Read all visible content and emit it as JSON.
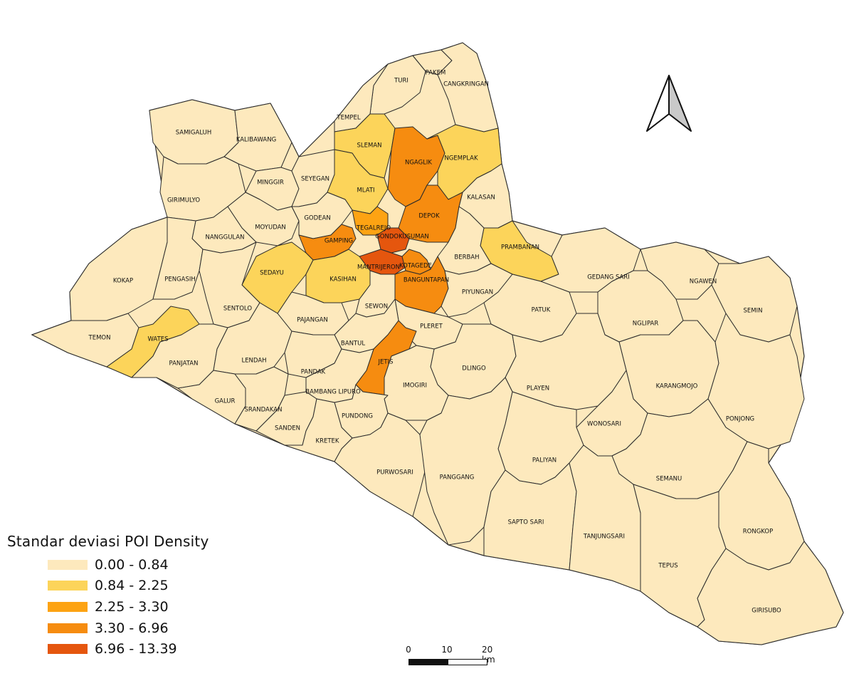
{
  "legend": {
    "title": "Standar deviasi POI Density",
    "classes": [
      {
        "label": "0.00 - 0.84",
        "color": "#fde9bd"
      },
      {
        "label": "0.84 - 2.25",
        "color": "#fcd45a"
      },
      {
        "label": "2.25 - 3.30",
        "color": "#fda313"
      },
      {
        "label": "3.30 - 6.96",
        "color": "#f68c10"
      },
      {
        "label": "6.96 - 13.39",
        "color": "#e5560e"
      }
    ]
  },
  "scalebar": {
    "labels": [
      "0",
      "10",
      "20 km"
    ]
  },
  "north_arrow": {
    "icon": "north-arrow-icon"
  },
  "districts": [
    {
      "name": "TURI",
      "cls": 0
    },
    {
      "name": "PAKEM",
      "cls": 0
    },
    {
      "name": "CANGKRINGAN",
      "cls": 0
    },
    {
      "name": "TEMPEL",
      "cls": 0
    },
    {
      "name": "SLEMAN",
      "cls": 1
    },
    {
      "name": "NGAGLIK",
      "cls": 3
    },
    {
      "name": "NGEMPLAK",
      "cls": 1
    },
    {
      "name": "SAMIGALUH",
      "cls": 0
    },
    {
      "name": "KALIBAWANG",
      "cls": 0
    },
    {
      "name": "MINGGIR",
      "cls": 0
    },
    {
      "name": "SEYEGAN",
      "cls": 0
    },
    {
      "name": "MLATI",
      "cls": 1
    },
    {
      "name": "KALASAN",
      "cls": 0
    },
    {
      "name": "DEPOK",
      "cls": 3
    },
    {
      "name": "GIRIMULYO",
      "cls": 0
    },
    {
      "name": "MOYUDAN",
      "cls": 0
    },
    {
      "name": "GODEAN",
      "cls": 0
    },
    {
      "name": "NANGGULAN",
      "cls": 0
    },
    {
      "name": "GAMPING",
      "cls": 3
    },
    {
      "name": "TEGALREJO",
      "cls": 2
    },
    {
      "name": "GONDOKUSUMAN",
      "cls": 4
    },
    {
      "name": "PRAMBANAN",
      "cls": 1
    },
    {
      "name": "SEDAYU",
      "cls": 1
    },
    {
      "name": "KOKAP",
      "cls": 0
    },
    {
      "name": "PENGASIH",
      "cls": 0
    },
    {
      "name": "KASIHAN",
      "cls": 1
    },
    {
      "name": "MANTRIJERON",
      "cls": 4
    },
    {
      "name": "KOTAGEDE",
      "cls": 3
    },
    {
      "name": "BERBAH",
      "cls": 0
    },
    {
      "name": "BANGUNTAPAN",
      "cls": 3
    },
    {
      "name": "PIYUNGAN",
      "cls": 0
    },
    {
      "name": "GEDANG SARI",
      "cls": 0
    },
    {
      "name": "NGAWEN",
      "cls": 0
    },
    {
      "name": "SENTOLO",
      "cls": 0
    },
    {
      "name": "SEWON",
      "cls": 0
    },
    {
      "name": "PATUK",
      "cls": 0
    },
    {
      "name": "SEMIN",
      "cls": 0
    },
    {
      "name": "PAJANGAN",
      "cls": 0
    },
    {
      "name": "NGLIPAR",
      "cls": 0
    },
    {
      "name": "TEMON",
      "cls": 0
    },
    {
      "name": "WATES",
      "cls": 1
    },
    {
      "name": "PLERET",
      "cls": 0
    },
    {
      "name": "BANTUL",
      "cls": 0
    },
    {
      "name": "PANJATAN",
      "cls": 0
    },
    {
      "name": "LENDAH",
      "cls": 0
    },
    {
      "name": "JETIS",
      "cls": 3
    },
    {
      "name": "DLINGO",
      "cls": 0
    },
    {
      "name": "PANDAK",
      "cls": 0
    },
    {
      "name": "KARANGMOJO",
      "cls": 0
    },
    {
      "name": "BAMBANG LIPURO",
      "cls": 0
    },
    {
      "name": "IMOGIRI",
      "cls": 0
    },
    {
      "name": "PLAYEN",
      "cls": 0
    },
    {
      "name": "GALUR",
      "cls": 0
    },
    {
      "name": "SRANDAKAN",
      "cls": 0
    },
    {
      "name": "PONJONG",
      "cls": 0
    },
    {
      "name": "PUNDONG",
      "cls": 0
    },
    {
      "name": "WONOSARI",
      "cls": 0
    },
    {
      "name": "SANDEN",
      "cls": 0
    },
    {
      "name": "KRETEK",
      "cls": 0
    },
    {
      "name": "PALIYAN",
      "cls": 0
    },
    {
      "name": "PURWOSARI",
      "cls": 0
    },
    {
      "name": "PANGGANG",
      "cls": 0
    },
    {
      "name": "SEMANU",
      "cls": 0
    },
    {
      "name": "SAPTO SARI",
      "cls": 0
    },
    {
      "name": "RONGKOP",
      "cls": 0
    },
    {
      "name": "TANJUNGSARI",
      "cls": 0
    },
    {
      "name": "TEPUS",
      "cls": 0
    },
    {
      "name": "GIRISUBO",
      "cls": 0
    }
  ]
}
